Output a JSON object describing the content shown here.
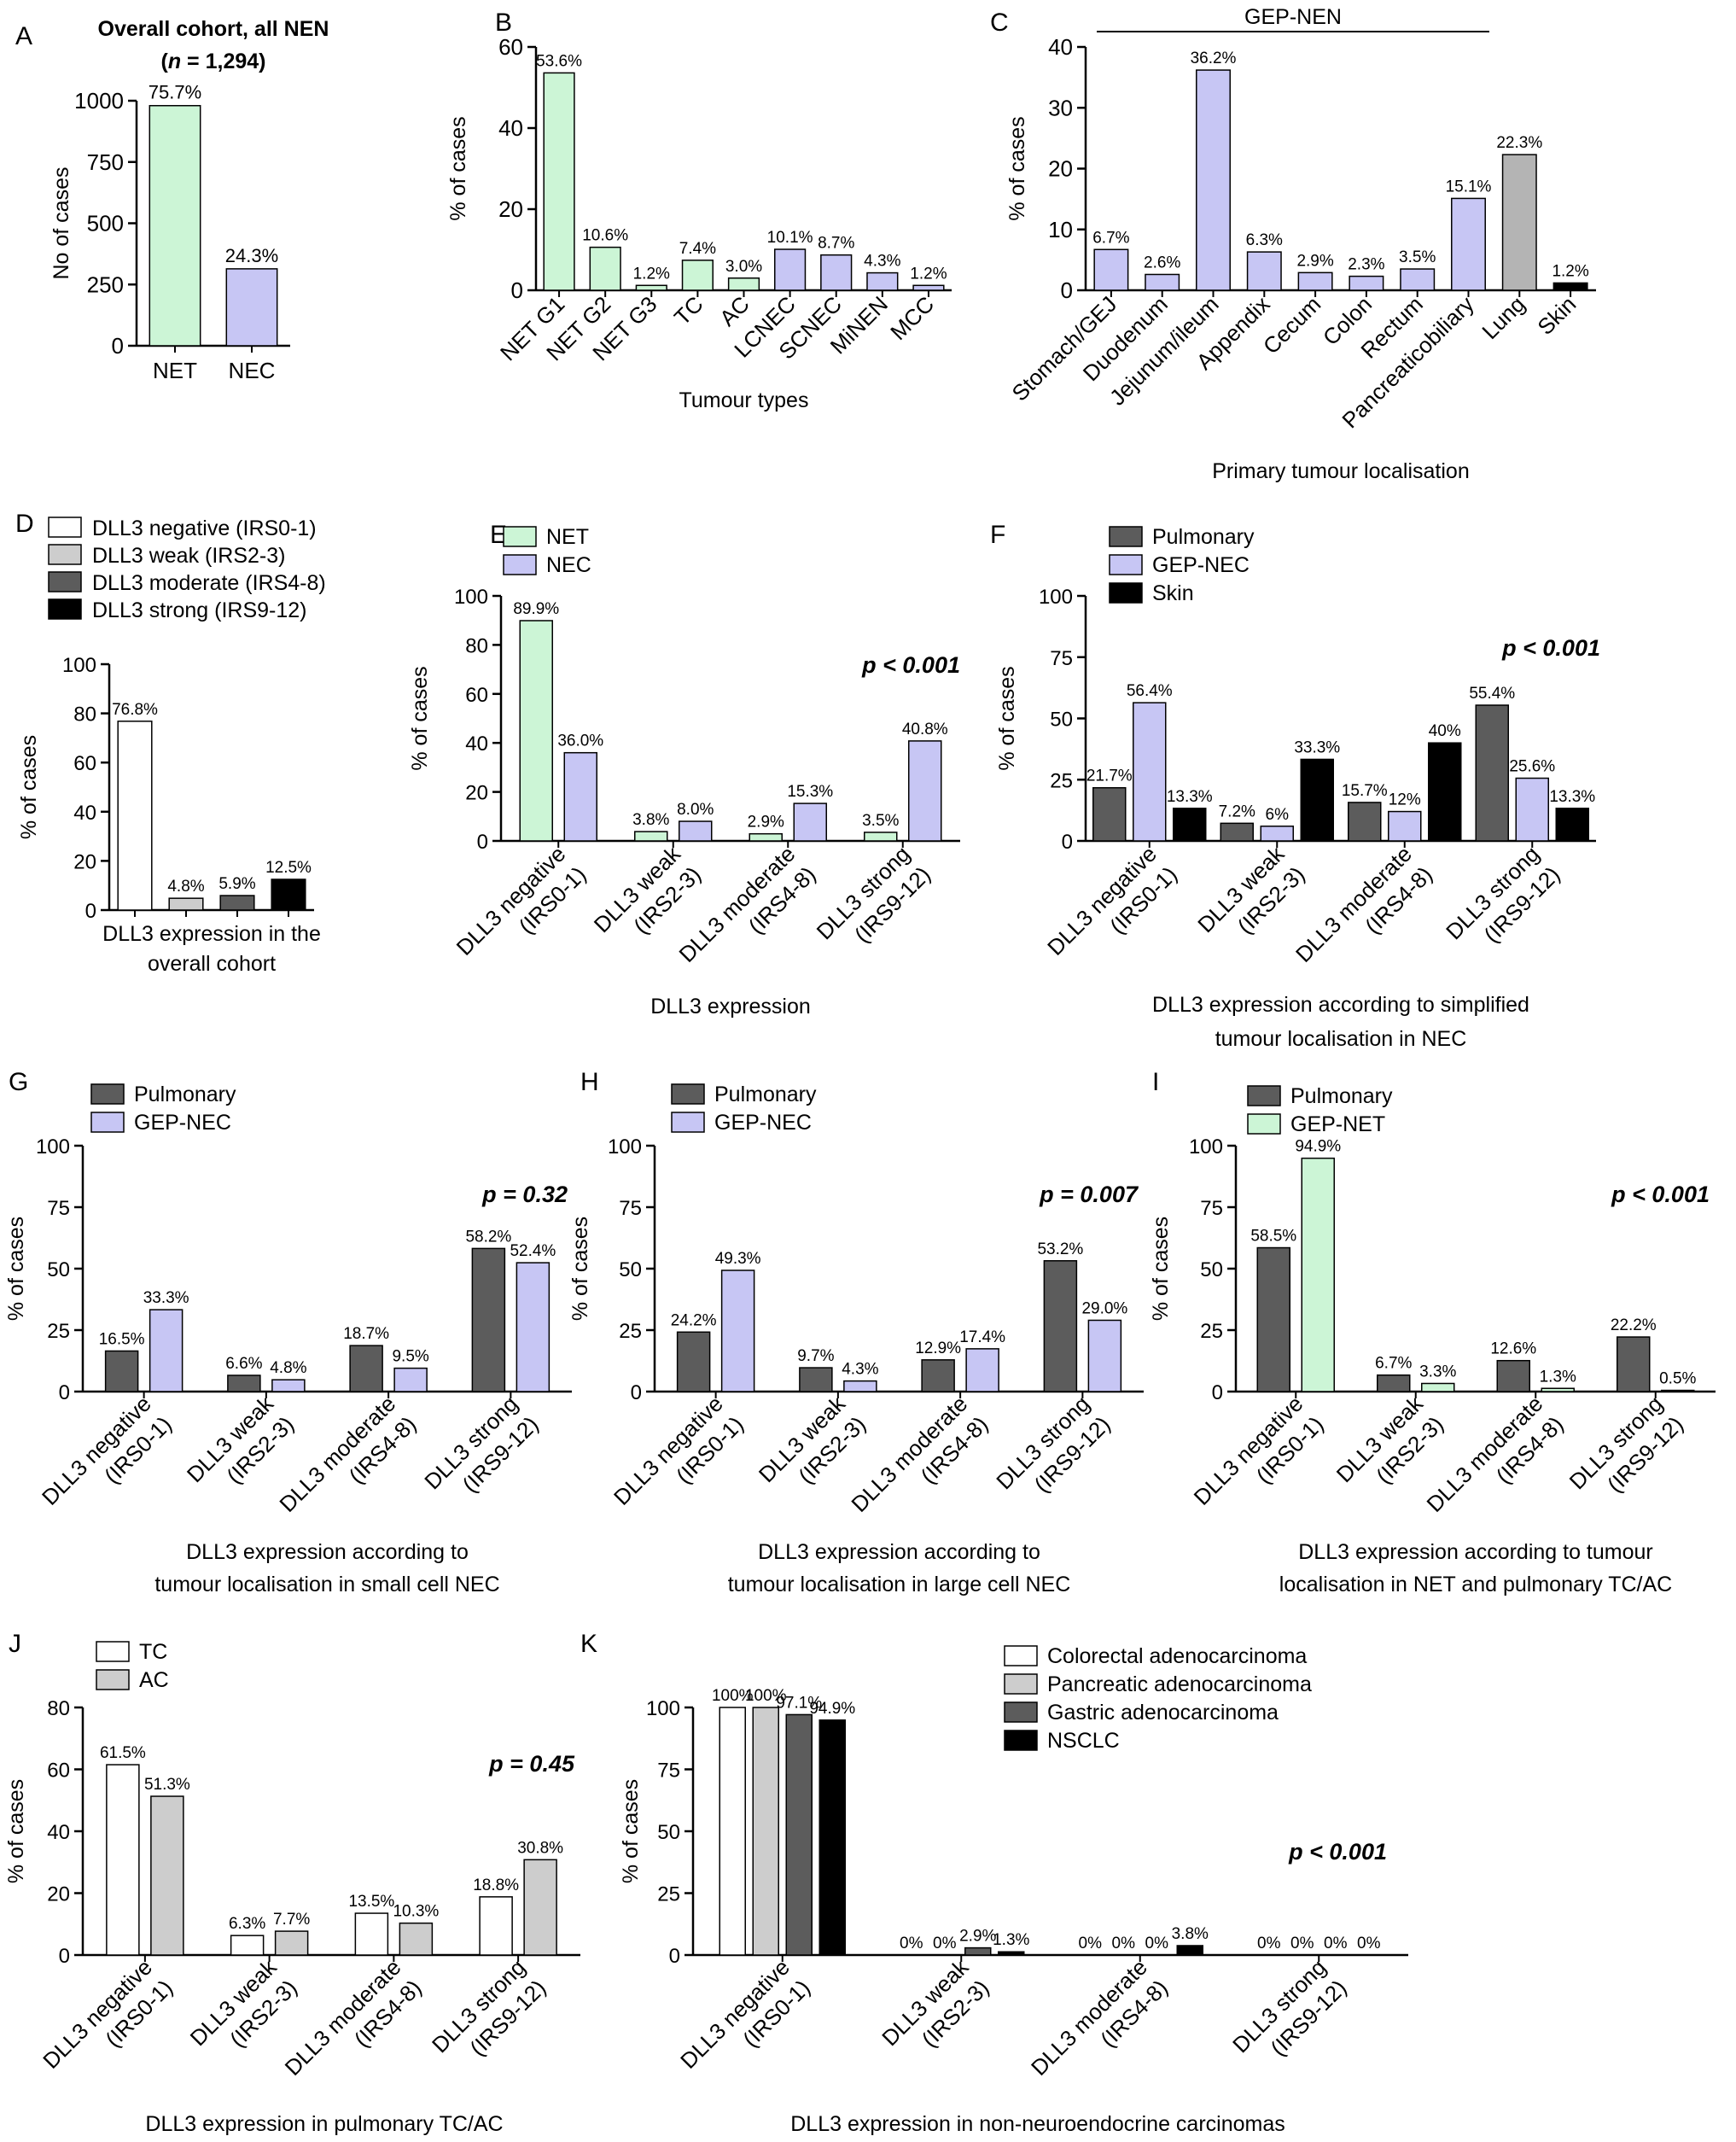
{
  "colors": {
    "net_green": "#ccf5d6",
    "nec_lavender": "#c7c6f4",
    "pulmonary_dark": "#5c5c5c",
    "skin_black": "#000000",
    "lung_gray": "#b4b4b4",
    "white": "#ffffff",
    "light_gray": "#cdcdcd",
    "dark_gray": "#5c5c5c"
  },
  "chart_data": [
    {
      "panel": "A",
      "type": "bar",
      "title": "Overall cohort, all NEN",
      "title_line2": [
        "(",
        "n",
        " = 1,294)"
      ],
      "ylabel": "No of cases",
      "xlabel": "",
      "ylim": [
        0,
        1000
      ],
      "yticks": [
        "0",
        "250",
        "500",
        "750",
        "1000"
      ],
      "categories": [
        "NET",
        "NEC"
      ],
      "series": [
        {
          "name": "",
          "values": [
            980,
            314
          ],
          "labels": [
            "75.7%",
            "24.3%"
          ],
          "bar_colors": [
            "#ccf5d6",
            "#c7c6f4"
          ]
        }
      ]
    },
    {
      "panel": "B",
      "type": "bar",
      "ylabel": "% of cases",
      "xlabel": "Tumour types",
      "ylim": [
        0,
        60
      ],
      "yticks": [
        "0",
        "20",
        "40",
        "60"
      ],
      "categories": [
        "NET G1",
        "NET G2",
        "NET G3",
        "TC",
        "AC",
        "LCNEC",
        "SCNEC",
        "MiNEN",
        "MCC"
      ],
      "series": [
        {
          "name": "",
          "values": [
            53.6,
            10.6,
            1.2,
            7.4,
            3.0,
            10.1,
            8.7,
            4.3,
            1.2
          ],
          "labels": [
            "53.6%",
            "10.6%",
            "1.2%",
            "7.4%",
            "3.0%",
            "10.1%",
            "8.7%",
            "4.3%",
            "1.2%"
          ],
          "bar_colors": [
            "#ccf5d6",
            "#ccf5d6",
            "#ccf5d6",
            "#ccf5d6",
            "#ccf5d6",
            "#c7c6f4",
            "#c7c6f4",
            "#c7c6f4",
            "#c7c6f4"
          ]
        }
      ]
    },
    {
      "panel": "C",
      "type": "bar",
      "ylabel": "% of cases",
      "xlabel": "Primary tumour localisation",
      "bracket_label": "GEP-NEN",
      "ylim": [
        0,
        40
      ],
      "yticks": [
        "0",
        "10",
        "20",
        "30",
        "40"
      ],
      "categories": [
        "Stomach/GEJ",
        "Duodenum",
        "Jejunum/ileum",
        "Appendix",
        "Cecum",
        "Colon",
        "Rectum",
        "Pancreaticobiliary",
        "Lung",
        "Skin"
      ],
      "series": [
        {
          "name": "",
          "values": [
            6.7,
            2.6,
            36.2,
            6.3,
            2.9,
            2.3,
            3.5,
            15.1,
            22.3,
            1.2
          ],
          "labels": [
            "6.7%",
            "2.6%",
            "36.2%",
            "6.3%",
            "2.9%",
            "2.3%",
            "3.5%",
            "15.1%",
            "22.3%",
            "1.2%"
          ],
          "bar_colors": [
            "#c7c6f4",
            "#c7c6f4",
            "#c7c6f4",
            "#c7c6f4",
            "#c7c6f4",
            "#c7c6f4",
            "#c7c6f4",
            "#c7c6f4",
            "#b4b4b4",
            "#000000"
          ]
        }
      ]
    },
    {
      "panel": "D",
      "type": "bar",
      "ylabel": "% of cases",
      "xlabel": [
        "DLL3 expression in the",
        "overall cohort"
      ],
      "ylim": [
        0,
        100
      ],
      "yticks": [
        "0",
        "20",
        "40",
        "60",
        "80",
        "100"
      ],
      "legend": [
        "DLL3 negative (IRS0-1)",
        "DLL3 weak (IRS2-3)",
        "DLL3 moderate (IRS4-8)",
        "DLL3 strong (IRS9-12)"
      ],
      "legend_colors": [
        "#ffffff",
        "#cdcdcd",
        "#5c5c5c",
        "#000000"
      ],
      "categories": [
        "DLL3 negative",
        "DLL3 weak",
        "DLL3 moderate",
        "DLL3 strong"
      ],
      "series": [
        {
          "name": "",
          "values": [
            76.8,
            4.8,
            5.9,
            12.5
          ],
          "labels": [
            "76.8%",
            "4.8%",
            "5.9%",
            "12.5%"
          ],
          "bar_colors": [
            "#ffffff",
            "#cdcdcd",
            "#5c5c5c",
            "#000000"
          ]
        }
      ]
    },
    {
      "panel": "E",
      "type": "bar",
      "ylabel": "% of cases",
      "xlabel": [
        "DLL3 expression"
      ],
      "pvalue": "p < 0.001",
      "ylim": [
        0,
        100
      ],
      "yticks": [
        "0",
        "20",
        "40",
        "60",
        "80",
        "100"
      ],
      "categories": [
        [
          "DLL3 negative",
          "(IRS0-1)"
        ],
        [
          "DLL3 weak",
          "(IRS2-3)"
        ],
        [
          "DLL3 moderate",
          "(IRS4-8)"
        ],
        [
          "DLL3 strong",
          "(IRS9-12)"
        ]
      ],
      "series": [
        {
          "name": "NET",
          "color": "#ccf5d6",
          "values": [
            89.9,
            3.8,
            2.9,
            3.5
          ],
          "labels": [
            "89.9%",
            "3.8%",
            "2.9%",
            "3.5%"
          ]
        },
        {
          "name": "NEC",
          "color": "#c7c6f4",
          "values": [
            36.0,
            8.0,
            15.3,
            40.8
          ],
          "labels": [
            "36.0%",
            "8.0%",
            "15.3%",
            "40.8%"
          ]
        }
      ]
    },
    {
      "panel": "F",
      "type": "bar",
      "ylabel": "% of cases",
      "xlabel": [
        "DLL3 expression according to simplified",
        "tumour localisation in NEC"
      ],
      "pvalue": "p < 0.001",
      "ylim": [
        0,
        100
      ],
      "yticks": [
        "0",
        "25",
        "50",
        "75",
        "100"
      ],
      "categories": [
        [
          "DLL3 negative",
          "(IRS0-1)"
        ],
        [
          "DLL3 weak",
          "(IRS2-3)"
        ],
        [
          "DLL3 moderate",
          "(IRS4-8)"
        ],
        [
          "DLL3 strong",
          "(IRS9-12)"
        ]
      ],
      "series": [
        {
          "name": "Pulmonary",
          "color": "#5c5c5c",
          "values": [
            21.7,
            7.2,
            15.7,
            55.4
          ],
          "labels": [
            "21.7%",
            "7.2%",
            "15.7%",
            "55.4%"
          ]
        },
        {
          "name": "GEP-NEC",
          "color": "#c7c6f4",
          "values": [
            56.4,
            6,
            12,
            25.6
          ],
          "labels": [
            "56.4%",
            "6%",
            "12%",
            "25.6%"
          ]
        },
        {
          "name": "Skin",
          "color": "#000000",
          "values": [
            13.3,
            33.3,
            40,
            13.3
          ],
          "labels": [
            "13.3%",
            "33.3%",
            "40%",
            "13.3%"
          ]
        }
      ]
    },
    {
      "panel": "G",
      "type": "bar",
      "ylabel": "% of cases",
      "xlabel": [
        "DLL3 expression according to",
        "tumour localisation in small cell NEC"
      ],
      "pvalue": "p = 0.32",
      "ylim": [
        0,
        100
      ],
      "yticks": [
        "0",
        "25",
        "50",
        "75",
        "100"
      ],
      "categories": [
        [
          "DLL3 negative",
          "(IRS0-1)"
        ],
        [
          "DLL3 weak",
          "(IRS2-3)"
        ],
        [
          "DLL3 moderate",
          "(IRS4-8)"
        ],
        [
          "DLL3 strong",
          "(IRS9-12)"
        ]
      ],
      "series": [
        {
          "name": "Pulmonary",
          "color": "#5c5c5c",
          "values": [
            16.5,
            6.6,
            18.7,
            58.2
          ],
          "labels": [
            "16.5%",
            "6.6%",
            "18.7%",
            "58.2%"
          ]
        },
        {
          "name": "GEP-NEC",
          "color": "#c7c6f4",
          "values": [
            33.3,
            4.8,
            9.5,
            52.4
          ],
          "labels": [
            "33.3%",
            "4.8%",
            "9.5%",
            "52.4%"
          ]
        }
      ]
    },
    {
      "panel": "H",
      "type": "bar",
      "ylabel": "% of cases",
      "xlabel": [
        "DLL3 expression according to",
        "tumour localisation in large cell NEC"
      ],
      "pvalue": "p = 0.007",
      "ylim": [
        0,
        100
      ],
      "yticks": [
        "0",
        "25",
        "50",
        "75",
        "100"
      ],
      "categories": [
        [
          "DLL3 negative",
          "(IRS0-1)"
        ],
        [
          "DLL3 weak",
          "(IRS2-3)"
        ],
        [
          "DLL3 moderate",
          "(IRS4-8)"
        ],
        [
          "DLL3 strong",
          "(IRS9-12)"
        ]
      ],
      "series": [
        {
          "name": "Pulmonary",
          "color": "#5c5c5c",
          "values": [
            24.2,
            9.7,
            12.9,
            53.2
          ],
          "labels": [
            "24.2%",
            "9.7%",
            "12.9%",
            "53.2%"
          ]
        },
        {
          "name": "GEP-NEC",
          "color": "#c7c6f4",
          "values": [
            49.3,
            4.3,
            17.4,
            29.0
          ],
          "labels": [
            "49.3%",
            "4.3%",
            "17.4%",
            "29.0%"
          ]
        }
      ]
    },
    {
      "panel": "I",
      "type": "bar",
      "ylabel": "% of cases",
      "xlabel": [
        "DLL3 expression according to tumour",
        "localisation in NET and pulmonary TC/AC"
      ],
      "pvalue": "p < 0.001",
      "ylim": [
        0,
        100
      ],
      "yticks": [
        "0",
        "25",
        "50",
        "75",
        "100"
      ],
      "categories": [
        [
          "DLL3 negative",
          "(IRS0-1)"
        ],
        [
          "DLL3 weak",
          "(IRS2-3)"
        ],
        [
          "DLL3 moderate",
          "(IRS4-8)"
        ],
        [
          "DLL3 strong",
          "(IRS9-12)"
        ]
      ],
      "series": [
        {
          "name": "Pulmonary",
          "color": "#5c5c5c",
          "values": [
            58.5,
            6.7,
            12.6,
            22.2
          ],
          "labels": [
            "58.5%",
            "6.7%",
            "12.6%",
            "22.2%"
          ]
        },
        {
          "name": "GEP-NET",
          "color": "#ccf5d6",
          "values": [
            94.9,
            3.3,
            1.3,
            0.5
          ],
          "labels": [
            "94.9%",
            "3.3%",
            "1.3%",
            "0.5%"
          ]
        }
      ]
    },
    {
      "panel": "J",
      "type": "bar",
      "ylabel": "% of cases",
      "xlabel": [
        "DLL3 expression in pulmonary TC/AC"
      ],
      "pvalue": "p = 0.45",
      "ylim": [
        0,
        80
      ],
      "yticks": [
        "0",
        "20",
        "40",
        "60",
        "80"
      ],
      "categories": [
        [
          "DLL3 negative",
          "(IRS0-1)"
        ],
        [
          "DLL3 weak",
          "(IRS2-3)"
        ],
        [
          "DLL3 moderate",
          "(IRS4-8)"
        ],
        [
          "DLL3 strong",
          "(IRS9-12)"
        ]
      ],
      "series": [
        {
          "name": "TC",
          "color": "#ffffff",
          "values": [
            61.5,
            6.3,
            13.5,
            18.8
          ],
          "labels": [
            "61.5%",
            "6.3%",
            "13.5%",
            "18.8%"
          ]
        },
        {
          "name": "AC",
          "color": "#cdcdcd",
          "values": [
            51.3,
            7.7,
            10.3,
            30.8
          ],
          "labels": [
            "51.3%",
            "7.7%",
            "10.3%",
            "30.8%"
          ]
        }
      ]
    },
    {
      "panel": "K",
      "type": "bar",
      "ylabel": "% of cases",
      "xlabel": [
        "DLL3 expression in non-neuroendocrine carcinomas"
      ],
      "pvalue": "p < 0.001",
      "ylim": [
        0,
        100
      ],
      "yticks": [
        "0",
        "25",
        "50",
        "75",
        "100"
      ],
      "categories": [
        [
          "DLL3 negative",
          "(IRS0-1)"
        ],
        [
          "DLL3 weak",
          "(IRS2-3)"
        ],
        [
          "DLL3 moderate",
          "(IRS4-8)"
        ],
        [
          "DLL3 strong",
          "(IRS9-12)"
        ]
      ],
      "series": [
        {
          "name": "Colorectal adenocarcinoma",
          "color": "#ffffff",
          "values": [
            100,
            0,
            0,
            0
          ],
          "labels": [
            "100%",
            "0%",
            "0%",
            "0%"
          ]
        },
        {
          "name": "Pancreatic adenocarcinoma",
          "color": "#cdcdcd",
          "values": [
            100,
            0,
            0,
            0
          ],
          "labels": [
            "100%",
            "0%",
            "0%",
            "0%"
          ]
        },
        {
          "name": "Gastric adenocarcinoma",
          "color": "#5c5c5c",
          "values": [
            97.1,
            2.9,
            0,
            0
          ],
          "labels": [
            "97.1%",
            "2.9%",
            "0%",
            "0%"
          ]
        },
        {
          "name": "NSCLC",
          "color": "#000000",
          "values": [
            94.9,
            1.3,
            3.8,
            0
          ],
          "labels": [
            "94.9%",
            "1.3%",
            "3.8%",
            "0%"
          ]
        }
      ]
    }
  ]
}
